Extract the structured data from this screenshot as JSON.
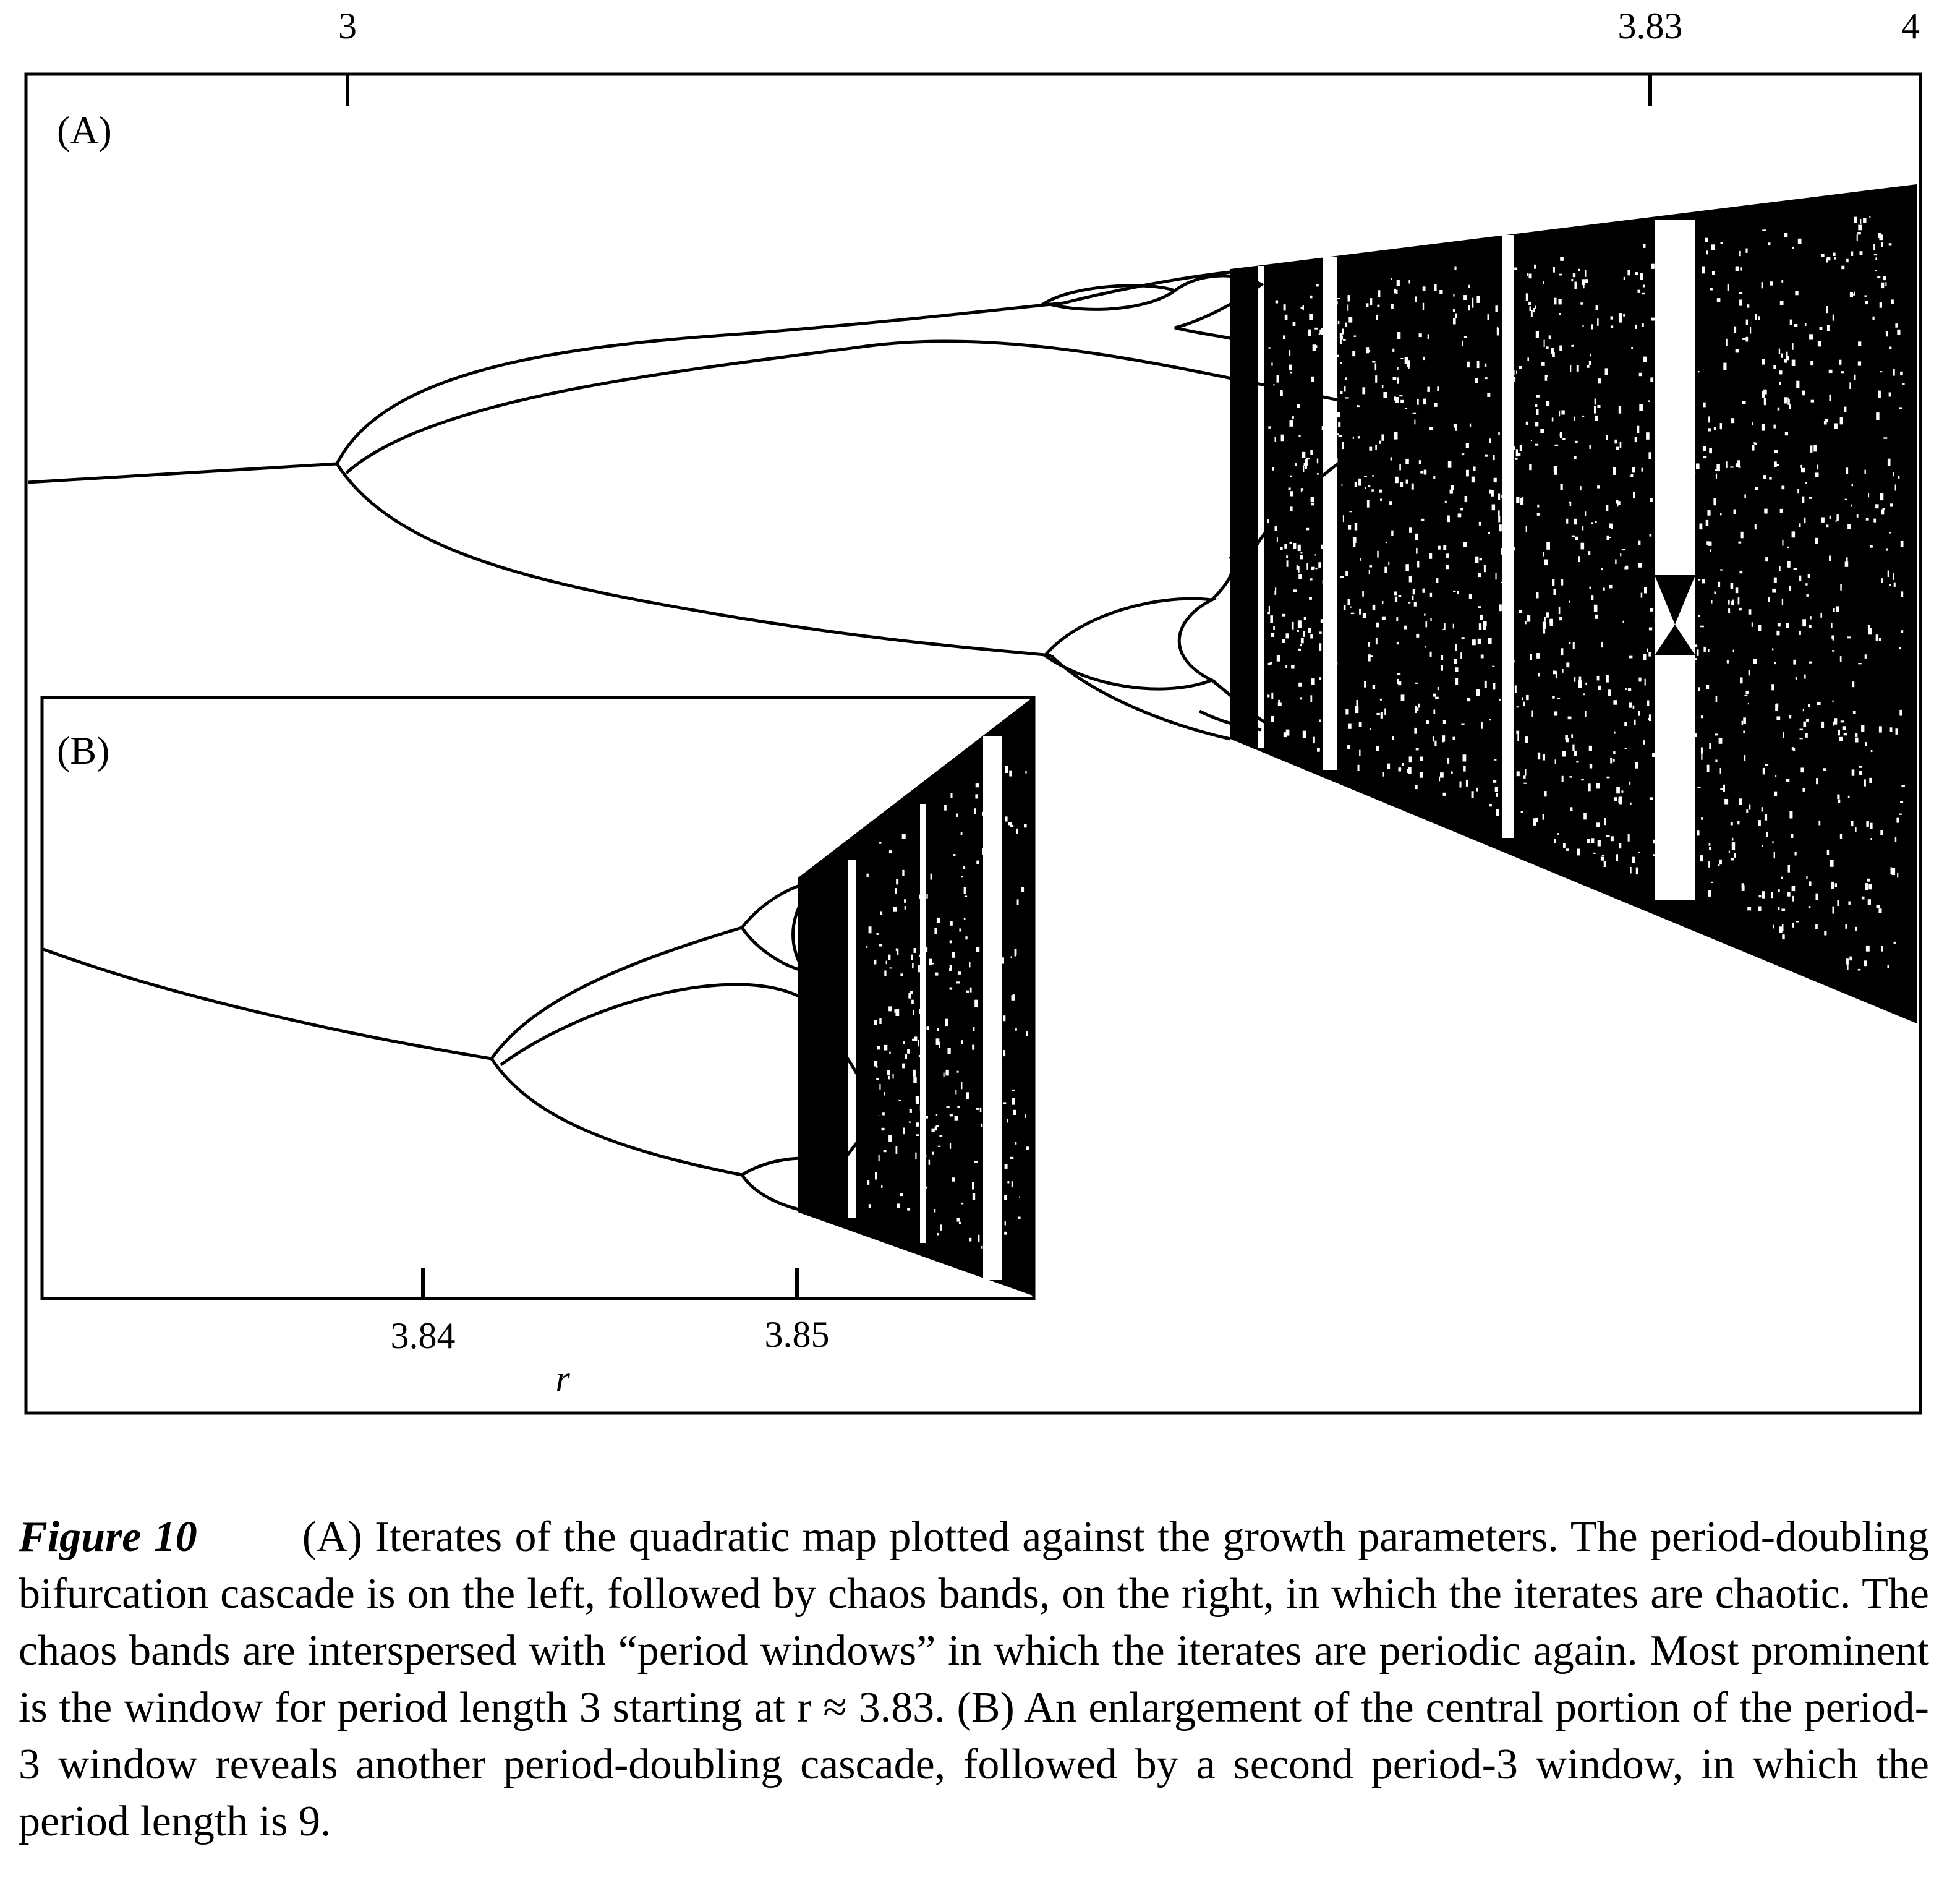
{
  "chart_data": [
    {
      "panel": "(A)",
      "type": "scatter",
      "top_ticks": [
        {
          "value": 3,
          "label": "3"
        },
        {
          "value": 3.83,
          "label": "3.83"
        },
        {
          "value": 4,
          "label": "4"
        }
      ],
      "xlim": [
        2.8,
        4
      ]
    },
    {
      "panel": "(B)",
      "type": "scatter",
      "bottom_ticks": [
        {
          "value": 3.84,
          "label": "3.84"
        },
        {
          "value": 3.85,
          "label": "3.85"
        }
      ],
      "xlabel": "r",
      "xlim": [
        3.8304,
        3.8565
      ]
    }
  ],
  "caption": {
    "label": "Figure 10",
    "text": "(A) Iterates of the quadratic map plotted against the growth parameters. The period-doubling bifurcation cascade is on the left, followed by chaos bands, on the right, in which the iterates are chaotic. The chaos bands are interspersed with “period windows” in which the iterates are periodic again. Most prominent is the window for period length 3 starting at r ≈ 3.83. (B) An enlargement of the central portion of the period-3 window reveals another period-doubling cascade, followed by a second period-3 window, in which the period length is 9."
  }
}
